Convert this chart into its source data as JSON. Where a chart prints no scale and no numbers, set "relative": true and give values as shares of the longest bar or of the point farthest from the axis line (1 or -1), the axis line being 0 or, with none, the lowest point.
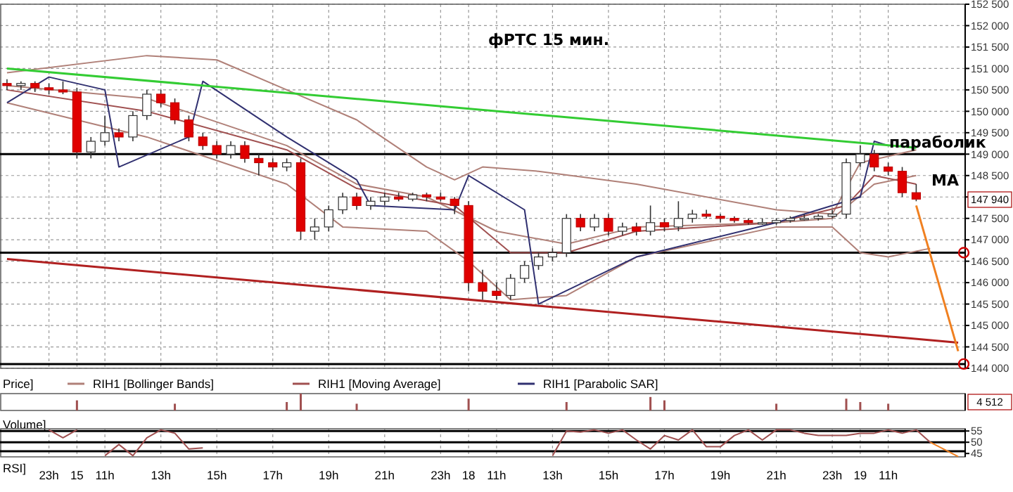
{
  "chart_data": [
    {
      "type": "candlestick",
      "title": "фРТС  15 мин.",
      "annotations": [
        "Price]",
        "параболик",
        "MA",
        "147 940"
      ],
      "categories": [
        null,
        null,
        null,
        null,
        null,
        null,
        null,
        null,
        null,
        null,
        null,
        null,
        null,
        null,
        null,
        null,
        null,
        null,
        null,
        null,
        null,
        null,
        null,
        null,
        null,
        null,
        null,
        null,
        null,
        null,
        null,
        null,
        null,
        null,
        null,
        null,
        null,
        null,
        null,
        null,
        null,
        null,
        null,
        null,
        null,
        null,
        null,
        null,
        null,
        null,
        null,
        null,
        null,
        null,
        null,
        null,
        null,
        null,
        null,
        null,
        null,
        null,
        null,
        null,
        null,
        null,
        null,
        null,
        null
      ],
      "ohlc": [
        [
          150650,
          150750,
          150500,
          150600
        ],
        [
          150600,
          150700,
          150500,
          150650
        ],
        [
          150650,
          150700,
          150450,
          150550
        ],
        [
          150550,
          150650,
          150400,
          150500
        ],
        [
          150500,
          150700,
          150400,
          150450
        ],
        [
          150450,
          150550,
          148900,
          149050
        ],
        [
          149050,
          149400,
          148900,
          149300
        ],
        [
          149300,
          149900,
          149200,
          149500
        ],
        [
          149500,
          149600,
          149300,
          149400
        ],
        [
          149400,
          150000,
          149300,
          149900
        ],
        [
          149900,
          150500,
          149800,
          150400
        ],
        [
          150400,
          150500,
          150100,
          150200
        ],
        [
          150200,
          150300,
          149700,
          149800
        ],
        [
          149800,
          149900,
          149300,
          149400
        ],
        [
          149400,
          149500,
          149100,
          149200
        ],
        [
          149200,
          149300,
          148900,
          149000
        ],
        [
          149000,
          149300,
          148900,
          149200
        ],
        [
          149200,
          149300,
          148800,
          148900
        ],
        [
          148900,
          149000,
          148500,
          148800
        ],
        [
          148800,
          148900,
          148600,
          148700
        ],
        [
          148700,
          148900,
          148600,
          148800
        ],
        [
          148800,
          148900,
          147000,
          147200
        ],
        [
          147200,
          147500,
          147000,
          147300
        ],
        [
          147300,
          147800,
          147200,
          147700
        ],
        [
          147700,
          148100,
          147600,
          148000
        ],
        [
          148000,
          148100,
          147700,
          147800
        ],
        [
          147800,
          148000,
          147700,
          147900
        ],
        [
          147900,
          148100,
          147800,
          148000
        ],
        [
          148000,
          148100,
          147900,
          147950
        ],
        [
          147950,
          148100,
          147900,
          148050
        ],
        [
          148050,
          148100,
          147900,
          148000
        ],
        [
          148000,
          148100,
          147900,
          147950
        ],
        [
          147950,
          148000,
          147600,
          147800
        ],
        [
          147800,
          147900,
          145800,
          146000
        ],
        [
          146000,
          146300,
          145600,
          145800
        ],
        [
          145800,
          146000,
          145600,
          145700
        ],
        [
          145700,
          146200,
          145600,
          146100
        ],
        [
          146100,
          146500,
          146000,
          146400
        ],
        [
          146400,
          146700,
          146300,
          146600
        ],
        [
          146600,
          146800,
          146500,
          146700
        ],
        [
          146700,
          147600,
          146600,
          147500
        ],
        [
          147500,
          147600,
          147200,
          147300
        ],
        [
          147300,
          147600,
          147200,
          147500
        ],
        [
          147500,
          147600,
          147100,
          147200
        ],
        [
          147200,
          147400,
          147100,
          147300
        ],
        [
          147300,
          147400,
          147100,
          147200
        ],
        [
          147200,
          147800,
          147100,
          147400
        ],
        [
          147400,
          147500,
          147200,
          147300
        ],
        [
          147300,
          147900,
          147200,
          147500
        ],
        [
          147500,
          147700,
          147400,
          147600
        ],
        [
          147600,
          147700,
          147500,
          147550
        ],
        [
          147550,
          147600,
          147400,
          147500
        ],
        [
          147500,
          147550,
          147400,
          147450
        ],
        [
          147450,
          147500,
          147350,
          147400
        ],
        [
          147400,
          147500,
          147350,
          147400
        ],
        [
          147400,
          147500,
          147350,
          147450
        ],
        [
          147450,
          147550,
          147400,
          147500
        ],
        [
          147500,
          147600,
          147450,
          147500
        ],
        [
          147500,
          147600,
          147450,
          147550
        ],
        [
          147550,
          147700,
          147500,
          147600
        ],
        [
          147600,
          148900,
          147500,
          148800
        ],
        [
          148800,
          149200,
          148700,
          149000
        ],
        [
          149000,
          149100,
          148600,
          148700
        ],
        [
          148700,
          148800,
          148500,
          148600
        ],
        [
          148600,
          148700,
          148000,
          148100
        ],
        [
          148100,
          148300,
          147900,
          147950
        ],
        null,
        null,
        null
      ],
      "series": [
        {
          "type": "line",
          "name": "RIH1 [Bollinger Bands]",
          "color": "#b08078",
          "values": [
            150900,
            null,
            null,
            null,
            null,
            null,
            null,
            null,
            null,
            null,
            151300,
            null,
            null,
            null,
            null,
            151200,
            null,
            null,
            null,
            null,
            150500,
            null,
            null,
            null,
            null,
            149800,
            null,
            null,
            null,
            null,
            148700,
            null,
            148400,
            null,
            148700,
            null,
            null,
            null,
            148600,
            null,
            null,
            null,
            null,
            null,
            null,
            148300,
            null,
            null,
            null,
            null,
            null,
            null,
            null,
            null,
            null,
            147700,
            null,
            null,
            null,
            147600,
            null,
            148800,
            null,
            null,
            null,
            149100,
            null,
            null,
            null
          ]
        },
        {
          "type": "line",
          "color": "#b08078",
          "values": [
            150600,
            null,
            null,
            null,
            null,
            null,
            null,
            null,
            null,
            null,
            150300,
            null,
            null,
            null,
            null,
            null,
            null,
            null,
            null,
            null,
            149200,
            null,
            null,
            null,
            null,
            148300,
            null,
            null,
            null,
            null,
            148000,
            null,
            null,
            null,
            null,
            147200,
            null,
            null,
            null,
            null,
            146900,
            null,
            null,
            null,
            null,
            147300,
            null,
            null,
            null,
            null,
            null,
            null,
            null,
            null,
            null,
            147400,
            null,
            null,
            null,
            147500,
            null,
            null,
            148300,
            null,
            null,
            148500,
            null,
            null,
            null
          ]
        },
        {
          "type": "line",
          "color": "#b08078",
          "values": [
            150200,
            null,
            null,
            null,
            null,
            null,
            null,
            null,
            null,
            null,
            149400,
            null,
            null,
            null,
            null,
            null,
            null,
            null,
            null,
            null,
            148300,
            null,
            null,
            null,
            147300,
            null,
            null,
            null,
            null,
            null,
            147200,
            null,
            null,
            146500,
            null,
            null,
            145600,
            null,
            null,
            null,
            145700,
            null,
            null,
            null,
            null,
            146600,
            null,
            null,
            null,
            null,
            null,
            null,
            null,
            null,
            null,
            147300,
            null,
            null,
            null,
            147300,
            null,
            146700,
            null,
            146600,
            null,
            null,
            146800,
            null,
            null
          ]
        },
        {
          "type": "line",
          "name": "RIH1 [Moving Average]",
          "color": "#a05050",
          "values": [
            150500,
            null,
            null,
            null,
            null,
            null,
            null,
            null,
            null,
            null,
            150000,
            null,
            null,
            null,
            null,
            null,
            null,
            null,
            null,
            null,
            149100,
            null,
            null,
            null,
            null,
            148200,
            null,
            null,
            null,
            null,
            null,
            null,
            147800,
            null,
            null,
            null,
            146700,
            null,
            null,
            null,
            146700,
            null,
            null,
            null,
            null,
            147200,
            null,
            null,
            null,
            null,
            null,
            null,
            null,
            null,
            null,
            147400,
            null,
            null,
            null,
            null,
            147800,
            null,
            148500,
            null,
            null,
            148300,
            null,
            null,
            null
          ]
        },
        {
          "type": "line",
          "name": "RIH1 [Parabolic SAR]",
          "color": "#303070",
          "values": [
            150200,
            null,
            null,
            150800,
            null,
            null,
            null,
            150500,
            148700,
            null,
            null,
            null,
            null,
            149400,
            150700,
            null,
            null,
            null,
            null,
            null,
            149400,
            null,
            null,
            null,
            null,
            148400,
            147800,
            null,
            null,
            null,
            null,
            null,
            147700,
            148500,
            null,
            null,
            null,
            147700,
            145500,
            null,
            null,
            null,
            null,
            null,
            null,
            146600,
            null,
            null,
            null,
            null,
            null,
            null,
            null,
            null,
            null,
            147400,
            null,
            null,
            null,
            null,
            null,
            148000,
            149300,
            149200,
            null,
            null,
            null,
            null,
            null
          ]
        },
        {
          "type": "line",
          "color": "#33cc33",
          "values": [
            151000,
            null,
            null,
            null,
            null,
            null,
            null,
            null,
            null,
            null,
            null,
            null,
            null,
            null,
            null,
            null,
            null,
            null,
            null,
            null,
            null,
            null,
            null,
            null,
            null,
            null,
            null,
            null,
            null,
            null,
            null,
            null,
            null,
            null,
            null,
            null,
            null,
            null,
            null,
            null,
            null,
            null,
            null,
            null,
            null,
            null,
            null,
            null,
            null,
            null,
            null,
            null,
            null,
            null,
            null,
            null,
            null,
            null,
            null,
            null,
            null,
            null,
            null,
            null,
            null,
            149150,
            null,
            null,
            null
          ]
        },
        {
          "type": "line",
          "color": "#b02020",
          "values": [
            146550,
            null,
            null,
            null,
            null,
            null,
            null,
            null,
            null,
            null,
            null,
            null,
            null,
            null,
            null,
            null,
            null,
            null,
            null,
            null,
            null,
            null,
            null,
            null,
            null,
            null,
            null,
            null,
            null,
            null,
            null,
            null,
            null,
            null,
            null,
            null,
            null,
            null,
            null,
            null,
            null,
            null,
            null,
            null,
            null,
            null,
            null,
            null,
            null,
            null,
            null,
            null,
            null,
            null,
            null,
            null,
            null,
            null,
            null,
            null,
            null,
            null,
            null,
            null,
            null,
            null,
            null,
            null,
            144600
          ]
        },
        {
          "type": "line",
          "color": "#f08020",
          "values": [
            null,
            null,
            null,
            null,
            null,
            null,
            null,
            null,
            null,
            null,
            null,
            null,
            null,
            null,
            null,
            null,
            null,
            null,
            null,
            null,
            null,
            null,
            null,
            null,
            null,
            null,
            null,
            null,
            null,
            null,
            null,
            null,
            null,
            null,
            null,
            null,
            null,
            null,
            null,
            null,
            null,
            null,
            null,
            null,
            null,
            null,
            null,
            null,
            null,
            null,
            null,
            null,
            null,
            null,
            null,
            null,
            null,
            null,
            null,
            null,
            null,
            null,
            null,
            null,
            null,
            147800,
            null,
            null,
            144400
          ]
        }
      ],
      "ref_lines": [
        {
          "axis": "y",
          "value": 149000,
          "color": "#000000"
        },
        {
          "axis": "y",
          "value": 146700,
          "color": "#000000"
        },
        {
          "axis": "y",
          "value": 144100,
          "color": "#000000"
        }
      ],
      "ylim": [
        144000,
        152500
      ],
      "yticks": [
        {
          "value": 144000,
          "label": "144 000"
        },
        {
          "value": 144500,
          "label": "144 500"
        },
        {
          "value": 145000,
          "label": "145 000"
        },
        {
          "value": 145500,
          "label": "145 500"
        },
        {
          "value": 146000,
          "label": "146 000"
        },
        {
          "value": 146500,
          "label": "146 500"
        },
        {
          "value": 147000,
          "label": "147 000"
        },
        {
          "value": 147500,
          "label": "147 500"
        },
        {
          "value": 148000,
          "label": null
        },
        {
          "value": 148500,
          "label": "148 500"
        },
        {
          "value": 149000,
          "label": "149 000"
        },
        {
          "value": 149500,
          "label": "149 500"
        },
        {
          "value": 150000,
          "label": "150 000"
        },
        {
          "value": 150500,
          "label": "150 500"
        },
        {
          "value": 151000,
          "label": "151 000"
        },
        {
          "value": 151500,
          "label": "151 500"
        },
        {
          "value": 152000,
          "label": "152 000"
        },
        {
          "value": 152500,
          "label": "152 500"
        }
      ],
      "tick_labels": "y",
      "grid": true,
      "legend": "bottom"
    },
    {
      "type": "bar",
      "relative": true,
      "annotations": [
        "Volume]",
        "4 512"
      ],
      "color": "#a05050",
      "categories": [
        null,
        null,
        null,
        null,
        null,
        null,
        null,
        null,
        null,
        null,
        null,
        null,
        null,
        null,
        null,
        null,
        null,
        null,
        null,
        null,
        null,
        null,
        null,
        null,
        null,
        null,
        null,
        null,
        null,
        null,
        null,
        null,
        null,
        null,
        null,
        null,
        null,
        null,
        null,
        null,
        null,
        null,
        null,
        null,
        null,
        null,
        null,
        null,
        null,
        null,
        null,
        null,
        null,
        null,
        null,
        null,
        null,
        null,
        null,
        null,
        null,
        null,
        null,
        null,
        null,
        null,
        null,
        null,
        null
      ],
      "values": [
        null,
        null,
        null,
        null,
        null,
        0.6,
        null,
        null,
        null,
        null,
        null,
        null,
        0.4,
        null,
        null,
        null,
        null,
        null,
        null,
        null,
        0.5,
        1,
        null,
        null,
        null,
        0.4,
        null,
        null,
        null,
        null,
        null,
        null,
        null,
        0.7,
        null,
        null,
        null,
        null,
        null,
        null,
        0.5,
        null,
        null,
        null,
        null,
        null,
        0.8,
        0.6,
        null,
        null,
        null,
        null,
        null,
        null,
        null,
        0.4,
        null,
        null,
        null,
        null,
        0.7,
        0.5,
        null,
        0.4,
        null,
        null,
        null,
        null,
        null
      ],
      "tick_labels": false
    },
    {
      "type": "line",
      "annotations": [
        "RSI]"
      ],
      "categories": [
        null,
        null,
        null,
        "23h",
        null,
        "15",
        null,
        "11h",
        null,
        null,
        null,
        "13h",
        null,
        null,
        null,
        "15h",
        null,
        null,
        null,
        "17h",
        null,
        null,
        null,
        "19h",
        null,
        null,
        null,
        "21h",
        null,
        null,
        null,
        "23h",
        null,
        "18",
        null,
        "11h",
        null,
        null,
        null,
        "13h",
        null,
        null,
        null,
        "15h",
        null,
        null,
        null,
        "17h",
        null,
        null,
        null,
        "19h",
        null,
        null,
        null,
        "21h",
        null,
        null,
        null,
        "23h",
        null,
        "19",
        null,
        "11h",
        null,
        null,
        null,
        null,
        null
      ],
      "series": [
        {
          "type": "line",
          "color": "#a05050",
          "values": [
            null,
            null,
            null,
            55.5,
            52,
            55.5,
            null,
            null,
            null,
            null,
            null,
            null,
            null,
            null,
            null,
            null,
            null,
            null,
            null,
            null,
            null,
            null,
            null,
            null,
            null,
            null,
            null,
            null,
            null,
            null,
            null,
            null,
            null,
            null,
            null,
            null,
            null,
            null,
            null,
            null,
            null,
            null,
            null,
            null,
            null,
            null,
            null,
            null,
            null,
            null,
            null,
            null,
            null,
            null,
            null,
            null,
            null,
            null,
            null,
            null,
            null,
            null,
            null,
            null,
            null,
            null,
            null,
            null,
            null
          ]
        },
        {
          "type": "line",
          "color": "#a05050",
          "values": [
            null,
            null,
            null,
            null,
            null,
            null,
            null,
            44,
            49,
            44,
            52,
            55.5,
            54,
            47,
            47.5,
            null,
            null,
            null,
            null,
            null,
            null,
            null,
            null,
            null,
            null,
            null,
            null,
            null,
            null,
            null,
            null,
            null,
            null,
            null,
            null,
            null,
            null,
            null,
            null,
            null,
            null,
            null,
            null,
            null,
            null,
            null,
            null,
            null,
            null,
            null,
            null,
            null,
            null,
            null,
            null,
            null,
            null,
            null,
            null,
            null,
            null,
            null,
            null,
            null,
            null,
            null,
            null,
            null,
            null
          ]
        },
        {
          "type": "line",
          "color": "#a05050",
          "values": [
            null,
            null,
            null,
            null,
            null,
            null,
            null,
            null,
            null,
            null,
            null,
            null,
            null,
            null,
            null,
            null,
            null,
            null,
            null,
            null,
            null,
            null,
            null,
            null,
            null,
            null,
            null,
            null,
            null,
            null,
            null,
            null,
            null,
            null,
            null,
            null,
            null,
            null,
            null,
            44,
            55,
            54.5,
            55.5,
            54,
            55.5,
            51,
            47,
            53,
            51,
            55.5,
            48,
            48,
            53,
            55.5,
            51,
            55.5,
            55.5,
            54,
            53,
            53,
            53,
            54,
            54,
            55.5,
            54,
            55.5,
            50,
            null,
            null
          ]
        },
        {
          "type": "line",
          "color": "#f08020",
          "values": [
            null,
            null,
            null,
            null,
            null,
            null,
            null,
            null,
            null,
            null,
            null,
            null,
            null,
            null,
            null,
            null,
            null,
            null,
            null,
            null,
            null,
            null,
            null,
            null,
            null,
            null,
            null,
            null,
            null,
            null,
            null,
            null,
            null,
            null,
            null,
            null,
            null,
            null,
            null,
            null,
            null,
            null,
            null,
            null,
            null,
            null,
            null,
            null,
            null,
            null,
            null,
            null,
            null,
            null,
            null,
            null,
            null,
            null,
            null,
            null,
            null,
            null,
            null,
            null,
            null,
            null,
            50,
            null,
            43.6
          ]
        }
      ],
      "ref_lines": [
        {
          "axis": "y",
          "value": 55,
          "color": "#000000"
        },
        {
          "axis": "y",
          "value": 50,
          "color": "#000000"
        },
        {
          "axis": "y",
          "value": 46,
          "color": "#000000"
        }
      ],
      "ylim": [
        43.5,
        56
      ],
      "yticks": [
        45,
        50,
        55
      ],
      "grid": "x"
    }
  ]
}
